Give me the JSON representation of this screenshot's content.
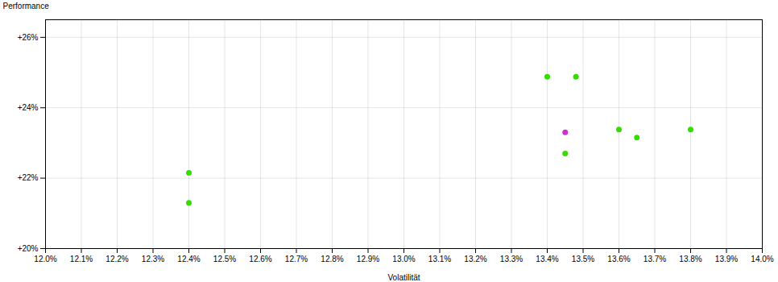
{
  "chart_data": {
    "type": "scatter",
    "xlabel": "Volatilität",
    "ylabel": "Performance",
    "xlim": [
      0.12,
      0.14
    ],
    "ylim": [
      0.2,
      0.265
    ],
    "xticks": [
      {
        "value": 0.12,
        "label": "12.0%"
      },
      {
        "value": 0.121,
        "label": "12.1%"
      },
      {
        "value": 0.122,
        "label": "12.2%"
      },
      {
        "value": 0.123,
        "label": "12.3%"
      },
      {
        "value": 0.124,
        "label": "12.4%"
      },
      {
        "value": 0.125,
        "label": "12.5%"
      },
      {
        "value": 0.126,
        "label": "12.6%"
      },
      {
        "value": 0.127,
        "label": "12.7%"
      },
      {
        "value": 0.128,
        "label": "12.8%"
      },
      {
        "value": 0.129,
        "label": "12.9%"
      },
      {
        "value": 0.13,
        "label": "13.0%"
      },
      {
        "value": 0.131,
        "label": "13.1%"
      },
      {
        "value": 0.132,
        "label": "13.2%"
      },
      {
        "value": 0.133,
        "label": "13.3%"
      },
      {
        "value": 0.134,
        "label": "13.4%"
      },
      {
        "value": 0.135,
        "label": "13.5%"
      },
      {
        "value": 0.136,
        "label": "13.6%"
      },
      {
        "value": 0.137,
        "label": "13.7%"
      },
      {
        "value": 0.138,
        "label": "13.8%"
      },
      {
        "value": 0.139,
        "label": "13.9%"
      },
      {
        "value": 0.14,
        "label": "14.0%"
      }
    ],
    "yticks": [
      {
        "value": 0.2,
        "label": "+20%"
      },
      {
        "value": 0.22,
        "label": "+22%"
      },
      {
        "value": 0.24,
        "label": "+24%"
      },
      {
        "value": 0.26,
        "label": "+26%"
      }
    ],
    "grid": true,
    "series": [
      {
        "color": "#33dd00",
        "x": [
          0.124,
          0.124,
          0.134,
          0.1348,
          0.1345,
          0.136,
          0.1365,
          0.138
        ],
        "values": [
          0.2215,
          0.213,
          0.2488,
          0.2488,
          0.227,
          0.2338,
          0.2315,
          0.2338
        ]
      },
      {
        "color": "#cc33cc",
        "x": [
          0.1345
        ],
        "values": [
          0.233
        ]
      }
    ]
  }
}
